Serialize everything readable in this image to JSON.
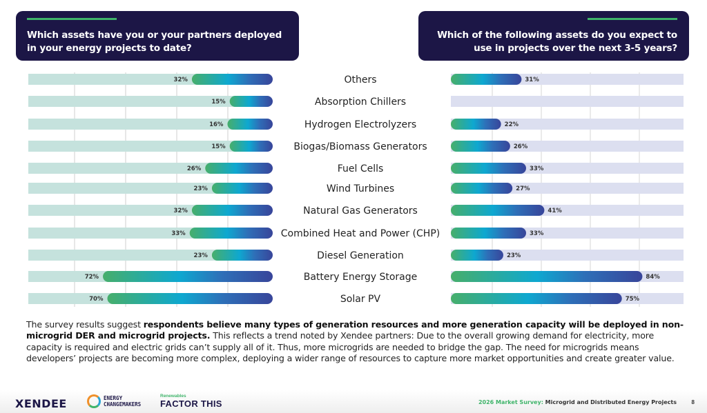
{
  "header": {
    "left_question": "Which assets have you or your partners deployed in your energy projects to date?",
    "right_question": "Which of the following assets do you expect to use in projects over the next 3-5 years?"
  },
  "colors": {
    "navy": "#1c1646",
    "accent_green": "#3fb46a",
    "left_track": "#c5e2dd",
    "right_track": "#dcdff0",
    "gradient": [
      "#47ae6b",
      "#0ea8d0",
      "#2e6fb8",
      "#38459a"
    ]
  },
  "chart_data": [
    {
      "type": "bar",
      "orientation": "horizontal",
      "direction": "right-to-left",
      "title": "Which assets have you or your partners deployed in your energy projects to date?",
      "categories": [
        "Others",
        "Absorption Chillers",
        "Hydrogen Electrolyzers",
        "Biogas/Biomass Generators",
        "Fuel Cells",
        "Wind Turbines",
        "Natural Gas Generators",
        "Combined Heat and Power (CHP)",
        "Diesel Generation",
        "Battery Energy Storage",
        "Solar PV"
      ],
      "values": [
        32,
        15,
        16,
        15,
        26,
        23,
        32,
        33,
        23,
        72,
        70
      ],
      "labels": [
        "32%",
        "15%",
        "16%",
        "15%",
        "26%",
        "23%",
        "32%",
        "33%",
        "23%",
        "72%",
        "70%"
      ],
      "unit": "%",
      "xlim": [
        0,
        100
      ],
      "grid": true
    },
    {
      "type": "bar",
      "orientation": "horizontal",
      "direction": "left-to-right",
      "title": "Which of the following assets do you expect to use in projects over the next 3-5 years?",
      "categories": [
        "Others",
        "Absorption Chillers",
        "Hydrogen Electrolyzers",
        "Biogas/Biomass Generators",
        "Fuel Cells",
        "Wind Turbines",
        "Natural Gas Generators",
        "Combined Heat and Power (CHP)",
        "Diesel Generation",
        "Battery Energy Storage",
        "Solar PV"
      ],
      "values": [
        31,
        null,
        22,
        26,
        33,
        27,
        41,
        33,
        23,
        84,
        75
      ],
      "labels": [
        "31%",
        "",
        "22%",
        "26%",
        "33%",
        "27%",
        "41%",
        "33%",
        "23%",
        "84%",
        "75%"
      ],
      "unit": "%",
      "xlim": [
        0,
        100
      ],
      "grid": true
    }
  ],
  "body": {
    "intro": "The survey results suggest ",
    "bold": "respondents believe many types of generation resources and more generation capacity will be deployed in non-microgrid DER and microgrid projects.",
    "rest": " This reflects a trend noted by Xendee partners: Due to the overall growing demand for electricity, more capacity is required and electric grids can’t supply all of it. Thus, more microgrids are needed to bridge the gap. The need for microgrids means developers’ projects are becoming more complex, deploying a wider range of resources to capture more market opportunities and create greater value."
  },
  "footer": {
    "logo_xendee": "XENDEE",
    "logo_ec_line1": "ENERGY",
    "logo_ec_line2": "CHANGEMAKERS",
    "logo_ft_small": "Renewables",
    "logo_ft_big": "FACTOR THIS",
    "survey_year_label": "2026 Market Survey:",
    "survey_title": " Microgrid and Distributed Energy Projects",
    "page_number": "8"
  }
}
